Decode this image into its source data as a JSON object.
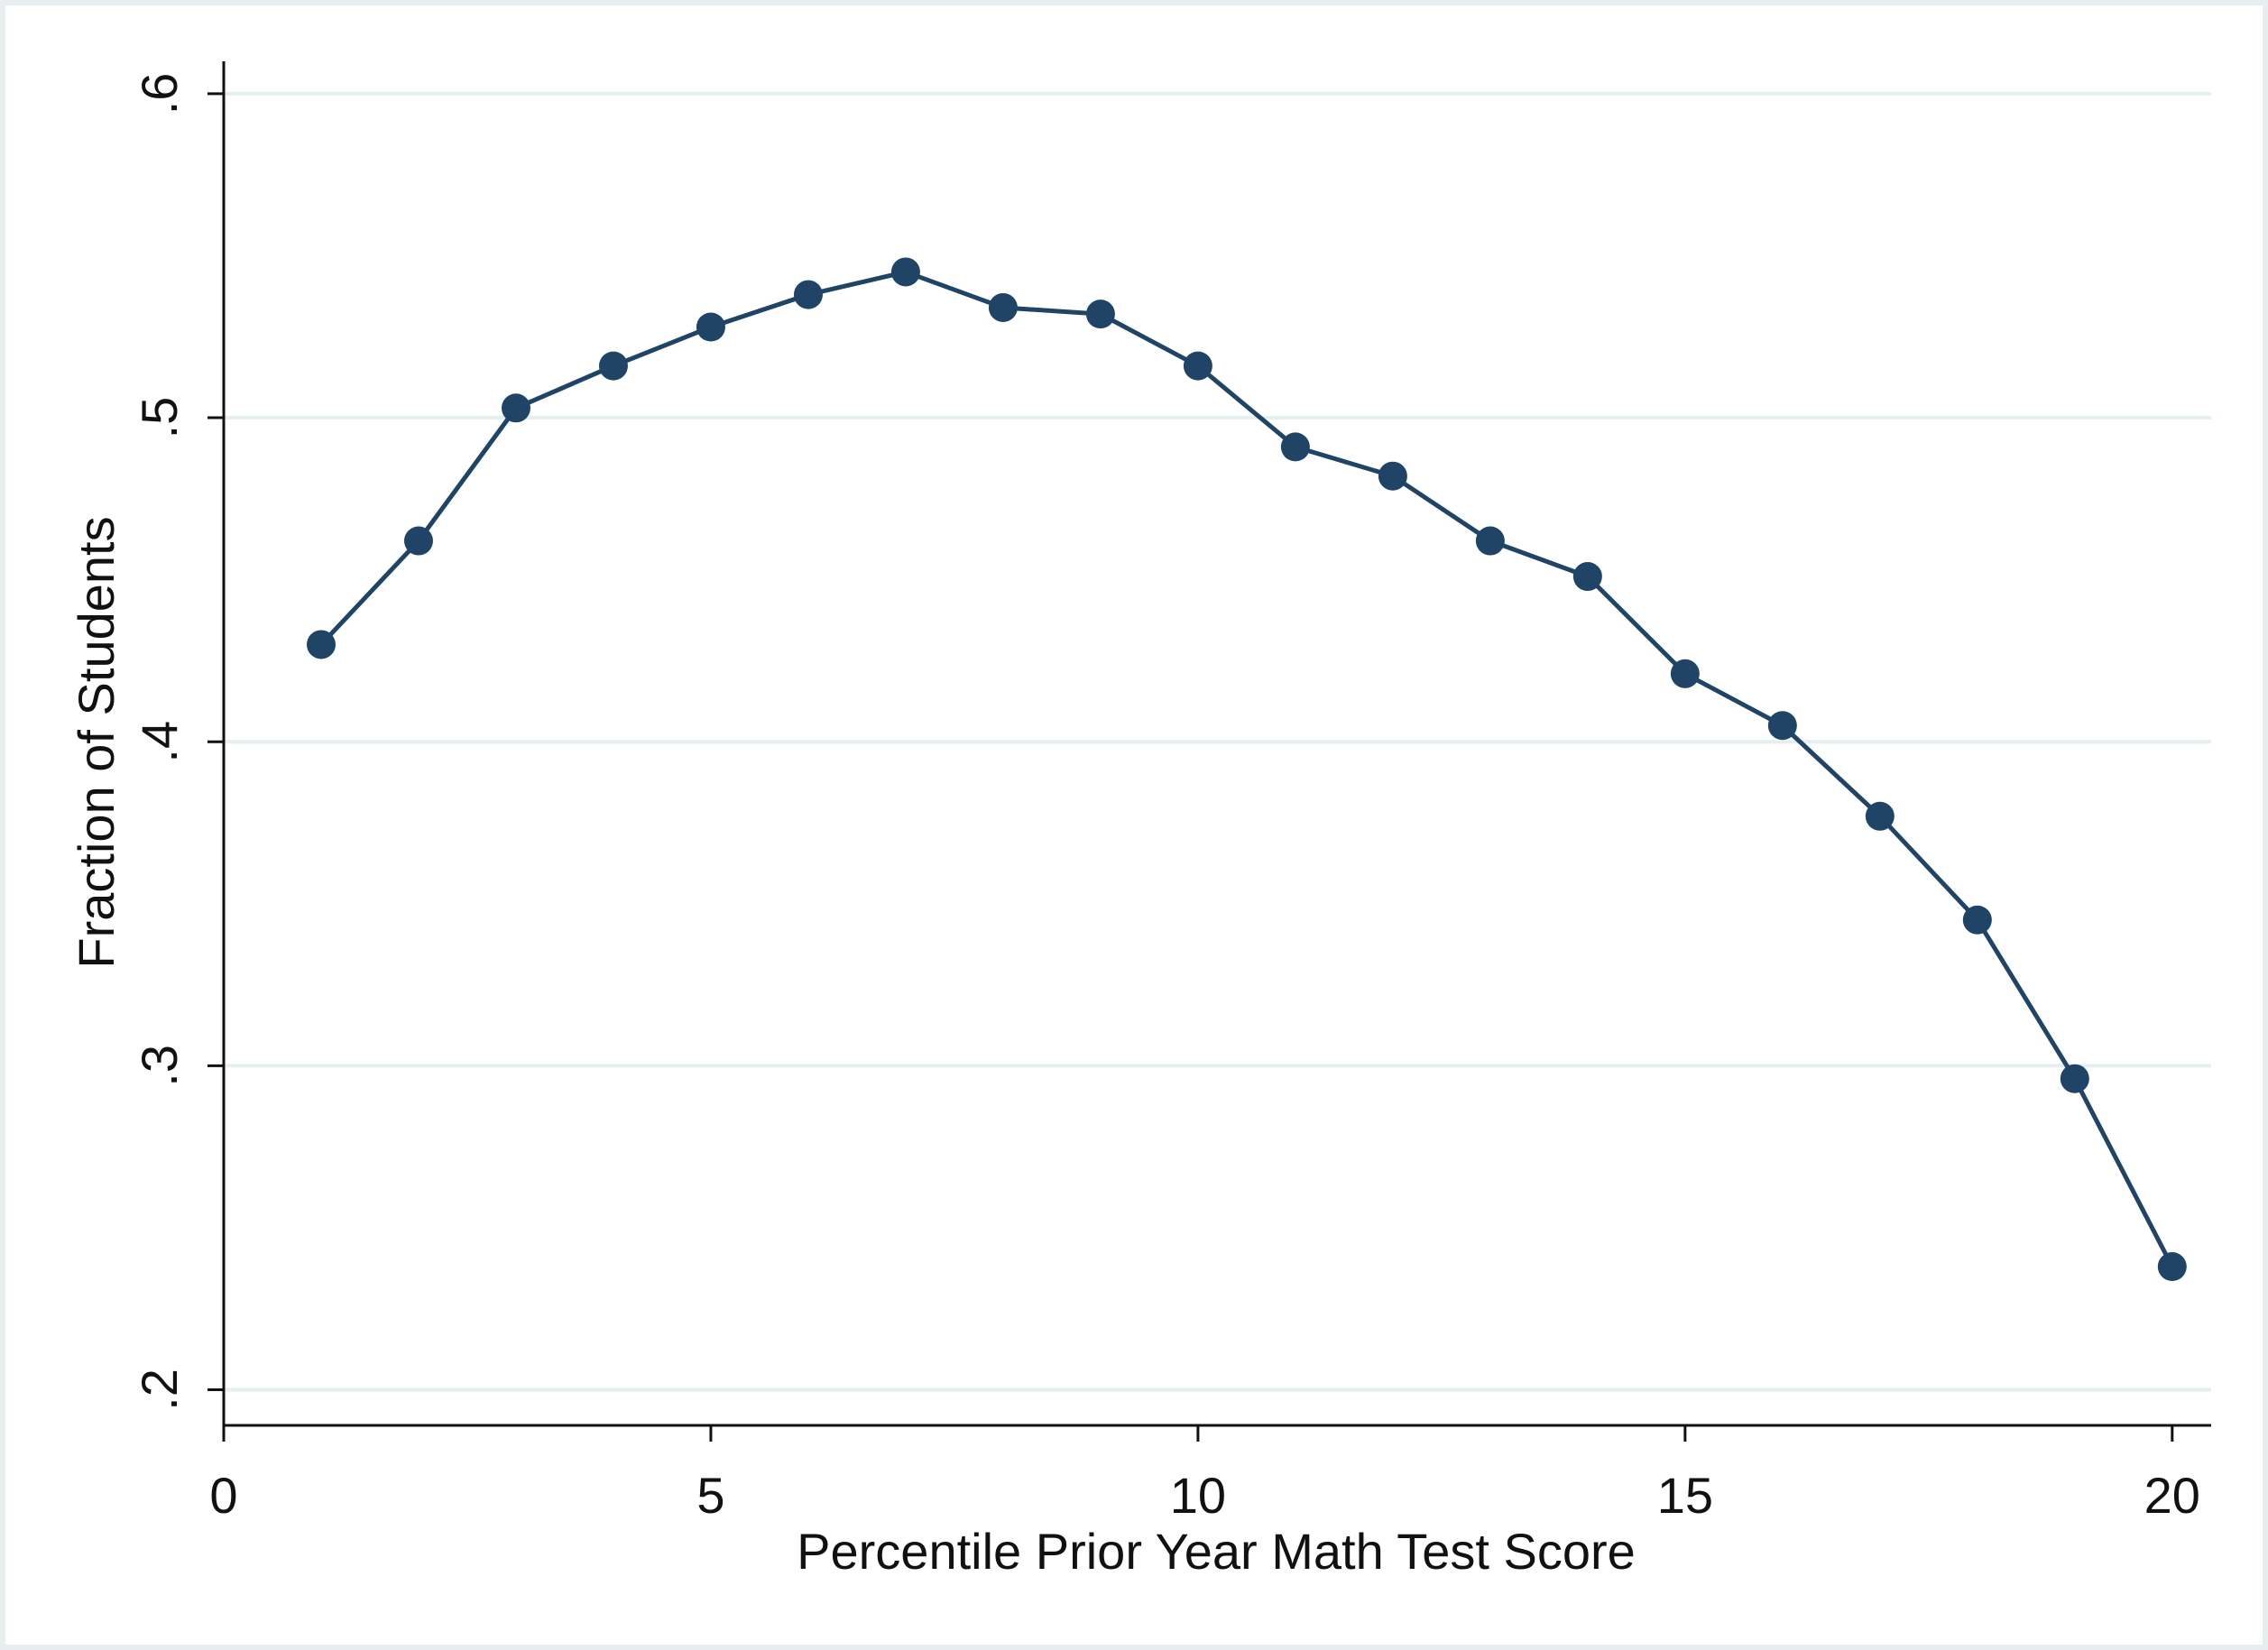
{
  "chart_data": {
    "type": "line",
    "title": "",
    "xlabel": "Percentile Prior Year Math Test Score",
    "ylabel": "Fraction of Students",
    "xlim": [
      0,
      20.4
    ],
    "ylim": [
      0.189,
      0.61
    ],
    "x_ticks": [
      0,
      5,
      10,
      15,
      20
    ],
    "x_tick_labels": [
      "0",
      "5",
      "10",
      "15",
      "20"
    ],
    "y_ticks": [
      0.2,
      0.3,
      0.4,
      0.5,
      0.6
    ],
    "y_tick_labels": [
      ".2",
      ".3",
      ".4",
      ".5",
      ".6"
    ],
    "grid": "horizontal",
    "series": [
      {
        "x": [
          1,
          2,
          3,
          4,
          5,
          6,
          7,
          8,
          9,
          10,
          11,
          12,
          13,
          14,
          15,
          16,
          17,
          18,
          19,
          20
        ],
        "values": [
          0.43,
          0.462,
          0.503,
          0.516,
          0.528,
          0.538,
          0.545,
          0.534,
          0.532,
          0.516,
          0.491,
          0.482,
          0.462,
          0.451,
          0.421,
          0.405,
          0.377,
          0.345,
          0.296,
          0.238
        ]
      }
    ],
    "colors": {
      "series": "#1f4466",
      "axis": "#111111",
      "grid": "#e6eef0",
      "frame": "#e8eef0"
    }
  }
}
